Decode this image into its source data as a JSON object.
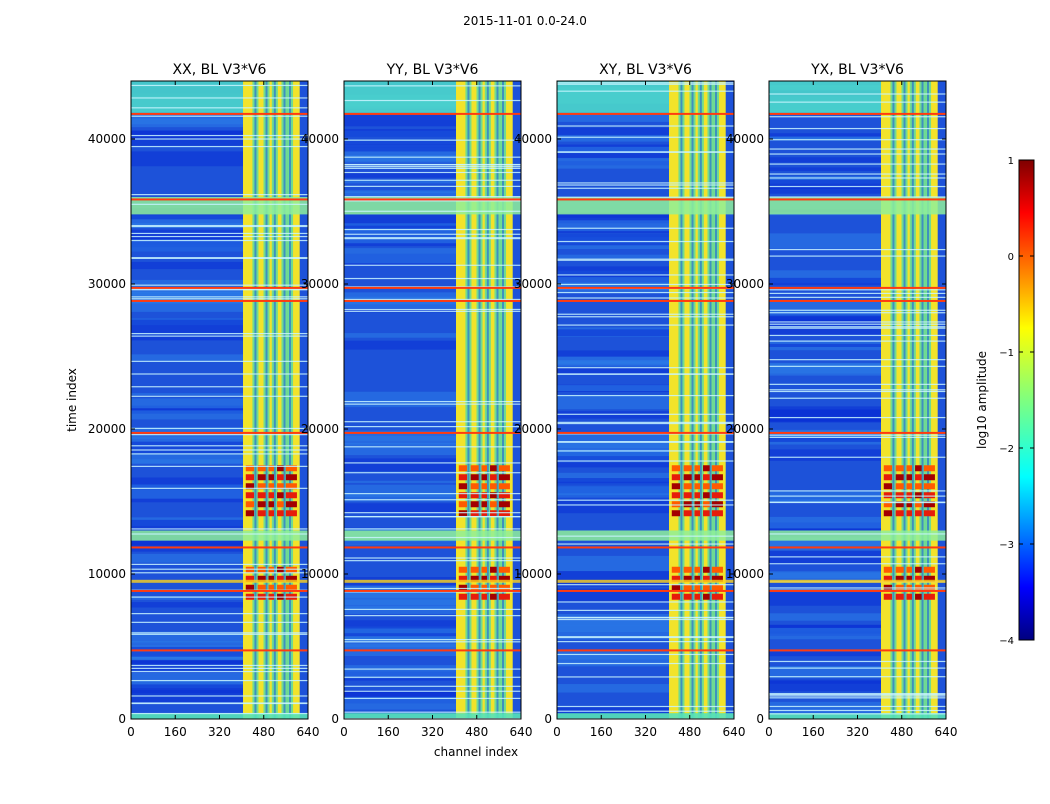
{
  "figure": {
    "suptitle": "2015-11-01 0.0-24.0",
    "xlabel": "channel index",
    "ylabel": "time index"
  },
  "chart_data": {
    "type": "heatmap",
    "title": "2015-11-01 0.0-24.0",
    "xlabel": "channel index",
    "ylabel": "time index",
    "xlim": [
      0,
      640
    ],
    "ylim": [
      0,
      44000
    ],
    "xticks": [
      "0",
      "160",
      "320",
      "480",
      "640"
    ],
    "yticks": [
      "0",
      "10000",
      "20000",
      "30000",
      "40000"
    ],
    "panels": [
      {
        "title": "XX, BL V3*V6"
      },
      {
        "title": "YY, BL V3*V6"
      },
      {
        "title": "XY, BL V3*V6"
      },
      {
        "title": "YX, BL V3*V6"
      }
    ],
    "band_channels": [
      405,
      610
    ],
    "band_gaps": [
      450,
      490,
      520,
      555,
      575
    ],
    "hot_times": [
      [
        7500,
        10500
      ],
      [
        13500,
        17500
      ]
    ],
    "red_lines": [
      4800,
      8900,
      11900,
      19800,
      28900,
      29800,
      35900,
      41800
    ],
    "colorbar": {
      "label": "log10 amplitude",
      "min": -4,
      "max": 1,
      "ticks": [
        "1",
        "0",
        "−1",
        "−2",
        "−3",
        "−4"
      ]
    }
  }
}
